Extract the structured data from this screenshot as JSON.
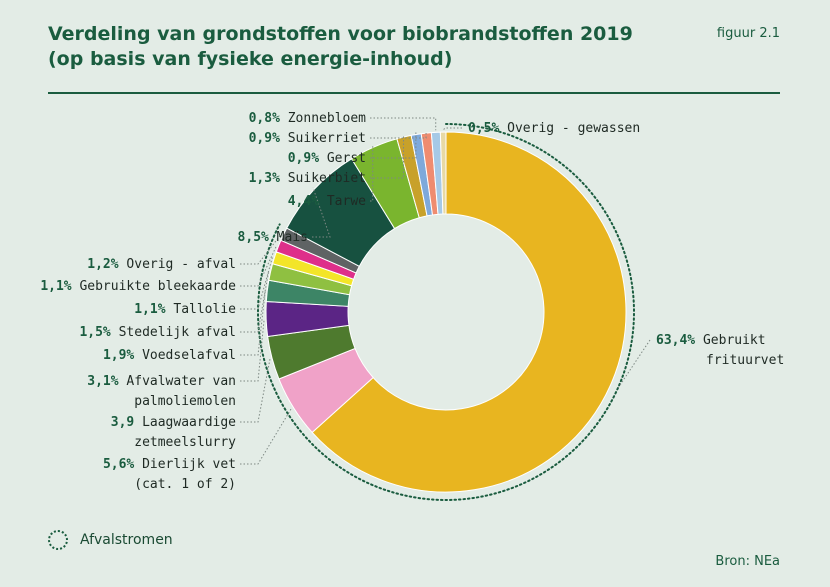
{
  "header": {
    "title_line1": "Verdeling van grondstoffen voor biobrandstoffen 2019",
    "title_line2": "(op basis van fysieke energie-inhoud)",
    "figure_id": "figuur 2.1"
  },
  "legend": {
    "label": "Afvalstromen"
  },
  "source": "Bron: NEa",
  "chart_data": {
    "type": "pie",
    "style": "donut",
    "start": "top",
    "direction": "clockwise",
    "ring_marks": "Afvalstromen",
    "slices": [
      {
        "pct": "63,4%",
        "label": [
          "Gebruikt",
          "frituurvet"
        ],
        "value": 63.4,
        "color": "#e8b520",
        "waste": true
      },
      {
        "pct": "5,6%",
        "label": [
          "Dierlijk vet",
          "(cat. 1 of 2)"
        ],
        "value": 5.6,
        "color": "#f0a2c8",
        "waste": true
      },
      {
        "pct": "3,9",
        "label": [
          "Laagwaardige",
          "zetmeelslurry"
        ],
        "value": 3.9,
        "color": "#4e7a2e",
        "waste": true
      },
      {
        "pct": "3,1%",
        "label": [
          "Afvalwater van",
          "palmoliemolen"
        ],
        "value": 3.1,
        "color": "#5b2585",
        "waste": true
      },
      {
        "pct": "1,9%",
        "label": [
          "Voedselafval"
        ],
        "value": 1.9,
        "color": "#3d8566",
        "waste": true
      },
      {
        "pct": "1,5%",
        "label": [
          "Stedelijk afval"
        ],
        "value": 1.5,
        "color": "#8fc041",
        "waste": true
      },
      {
        "pct": "1,1%",
        "label": [
          "Tallolie"
        ],
        "value": 1.1,
        "color": "#f3e528",
        "waste": true
      },
      {
        "pct": "1,1%",
        "label": [
          "Gebruikte bleekaarde"
        ],
        "value": 1.1,
        "color": "#de2f8a",
        "waste": true
      },
      {
        "pct": "1,2%",
        "label": [
          "Overig - afval"
        ],
        "value": 1.2,
        "color": "#5f6364",
        "waste": true
      },
      {
        "pct": "8,5%",
        "label": [
          "Maïs"
        ],
        "value": 8.5,
        "color": "#175140",
        "waste": false
      },
      {
        "pct": "4,4%",
        "label": [
          "Tarwe"
        ],
        "value": 4.4,
        "color": "#7ab52e",
        "waste": false
      },
      {
        "pct": "1,3%",
        "label": [
          "Suikerbiet"
        ],
        "value": 1.3,
        "color": "#c8a12a",
        "waste": false
      },
      {
        "pct": "0,9%",
        "label": [
          "Gerst"
        ],
        "value": 0.9,
        "color": "#7ea9db",
        "waste": false
      },
      {
        "pct": "0,9%",
        "label": [
          "Suikerriet"
        ],
        "value": 0.9,
        "color": "#ef8c70",
        "waste": false
      },
      {
        "pct": "0,8%",
        "label": [
          "Zonnebloem"
        ],
        "value": 0.8,
        "color": "#a6c9e6",
        "waste": false
      },
      {
        "pct": "0,5%",
        "label": [
          "Overig - gewassen"
        ],
        "value": 0.5,
        "color": "#e8d9a4",
        "waste": false
      }
    ]
  }
}
